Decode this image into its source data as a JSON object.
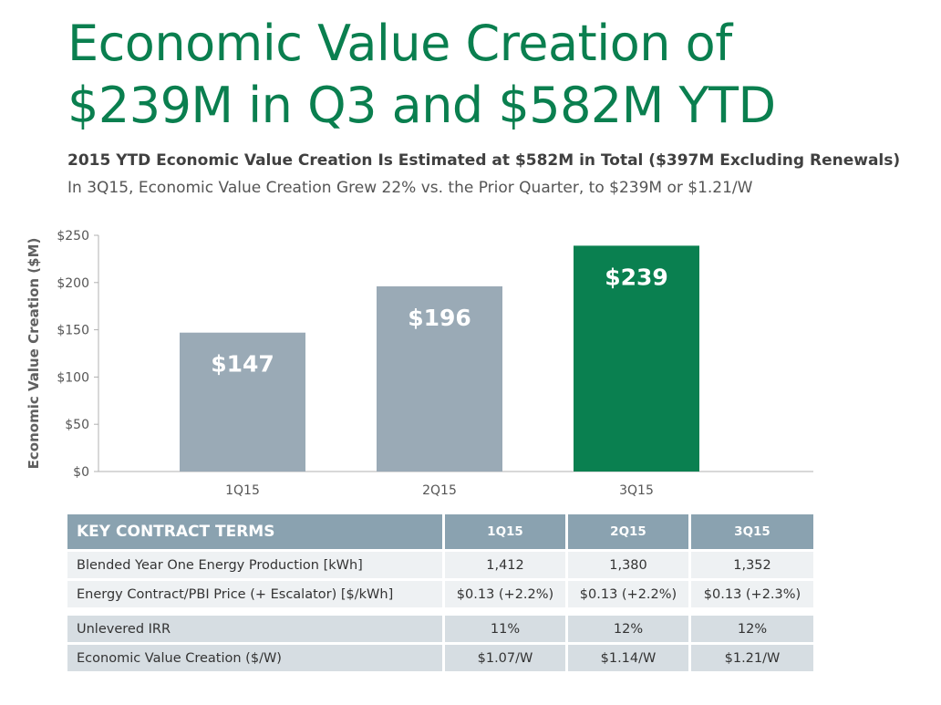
{
  "title": "Economic Value Creation of $239M in Q3 and $582M YTD",
  "subtitle_bold": "2015 YTD Economic Value Creation Is Estimated at $582M in Total ($397M Excluding Renewals)",
  "subtitle": "In 3Q15, Economic Value Creation Grew 22% vs. the Prior Quarter, to $239M or $1.21/W",
  "colors": {
    "title": "#0a7f4f",
    "bar_gray": "#9aaab6",
    "bar_green": "#0a8050",
    "table_header": "#8aa2b0"
  },
  "chart_data": {
    "type": "bar",
    "categories": [
      "1Q15",
      "2Q15",
      "3Q15"
    ],
    "values": [
      147,
      196,
      239
    ],
    "data_labels": [
      "$147",
      "$196",
      "$239"
    ],
    "bar_colors": [
      "#9aaab6",
      "#9aaab6",
      "#0a8050"
    ],
    "ylabel": "Economic Value Creation ($M)",
    "xlabel": "",
    "ylim": [
      0,
      250
    ],
    "yticks": [
      0,
      50,
      100,
      150,
      200,
      250
    ],
    "ytick_labels": [
      "$0",
      "$50",
      "$100",
      "$150",
      "$200",
      "$250"
    ],
    "grid": false,
    "legend": "none"
  },
  "table": {
    "header": [
      "KEY CONTRACT TERMS",
      "1Q15",
      "2Q15",
      "3Q15"
    ],
    "group1": [
      {
        "label": "Blended Year One Energy Production [kWh]",
        "values": [
          "1,412",
          "1,380",
          "1,352"
        ]
      },
      {
        "label": "Energy Contract/PBI Price (+ Escalator) [$/kWh]",
        "values": [
          "$0.13 (+2.2%)",
          "$0.13 (+2.2%)",
          "$0.13 (+2.3%)"
        ]
      }
    ],
    "group2": [
      {
        "label": "Unlevered IRR",
        "values": [
          "11%",
          "12%",
          "12%"
        ]
      },
      {
        "label": "Economic Value Creation ($/W)",
        "values": [
          "$1.07/W",
          "$1.14/W",
          "$1.21/W"
        ]
      }
    ]
  }
}
